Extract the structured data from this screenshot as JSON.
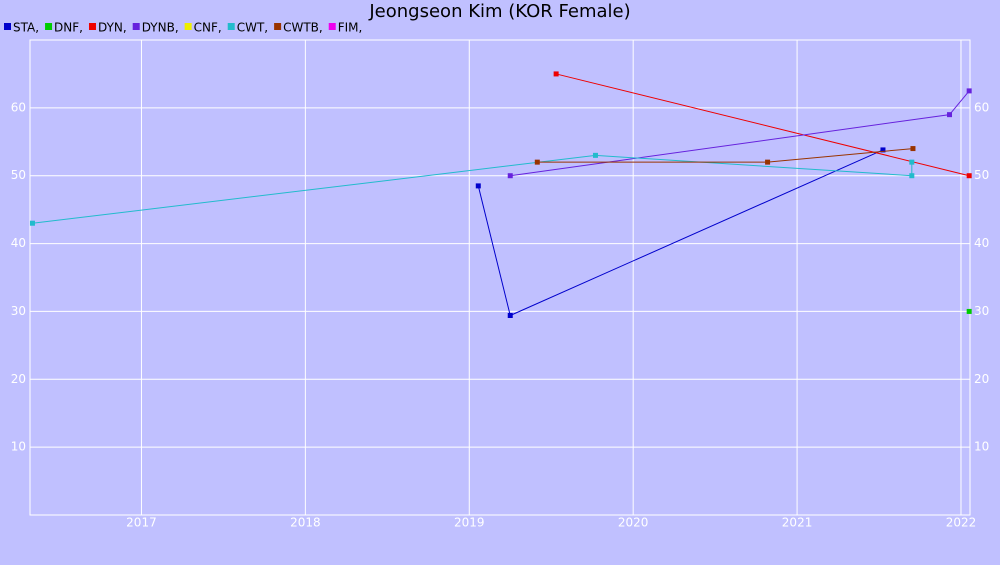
{
  "chart_data": {
    "type": "line",
    "title": "Jeongseon Kim (KOR Female)",
    "xlim": [
      2016.32,
      2022.055
    ],
    "xticks": [
      2017,
      2018,
      2019,
      2020,
      2021,
      2022
    ],
    "ylim": [
      0,
      70
    ],
    "yticks": [
      10,
      20,
      30,
      40,
      50,
      60
    ],
    "grid": true,
    "series": [
      {
        "name": "STA,",
        "color": "#0000cc",
        "x": [
          2019.055,
          2019.25,
          2021.524
        ],
        "values": [
          48.5,
          29.4,
          53.8
        ]
      },
      {
        "name": "DNF,",
        "color": "#00cc00",
        "x": [
          2022.05
        ],
        "values": [
          30
        ]
      },
      {
        "name": "DYN,",
        "color": "#ee0000",
        "x": [
          2019.53,
          2022.05
        ],
        "values": [
          65,
          50
        ]
      },
      {
        "name": "DYNB,",
        "color": "#6622dd",
        "x": [
          2019.25,
          2021.93,
          2022.05
        ],
        "values": [
          50,
          59,
          62.5
        ]
      },
      {
        "name": "CNF,",
        "color": "#eeee00",
        "x": [],
        "values": []
      },
      {
        "name": "CWT,",
        "color": "#22bbcc",
        "x": [
          2016.335,
          2019.77,
          2021.7,
          2021.7
        ],
        "values": [
          43,
          53,
          50,
          52
        ]
      },
      {
        "name": "CWTB,",
        "color": "#993300",
        "x": [
          2019.415,
          2020.82,
          2021.707
        ],
        "values": [
          52,
          52,
          54
        ]
      },
      {
        "name": "FIM,",
        "color": "#ee00ee",
        "x": [],
        "values": []
      }
    ]
  }
}
